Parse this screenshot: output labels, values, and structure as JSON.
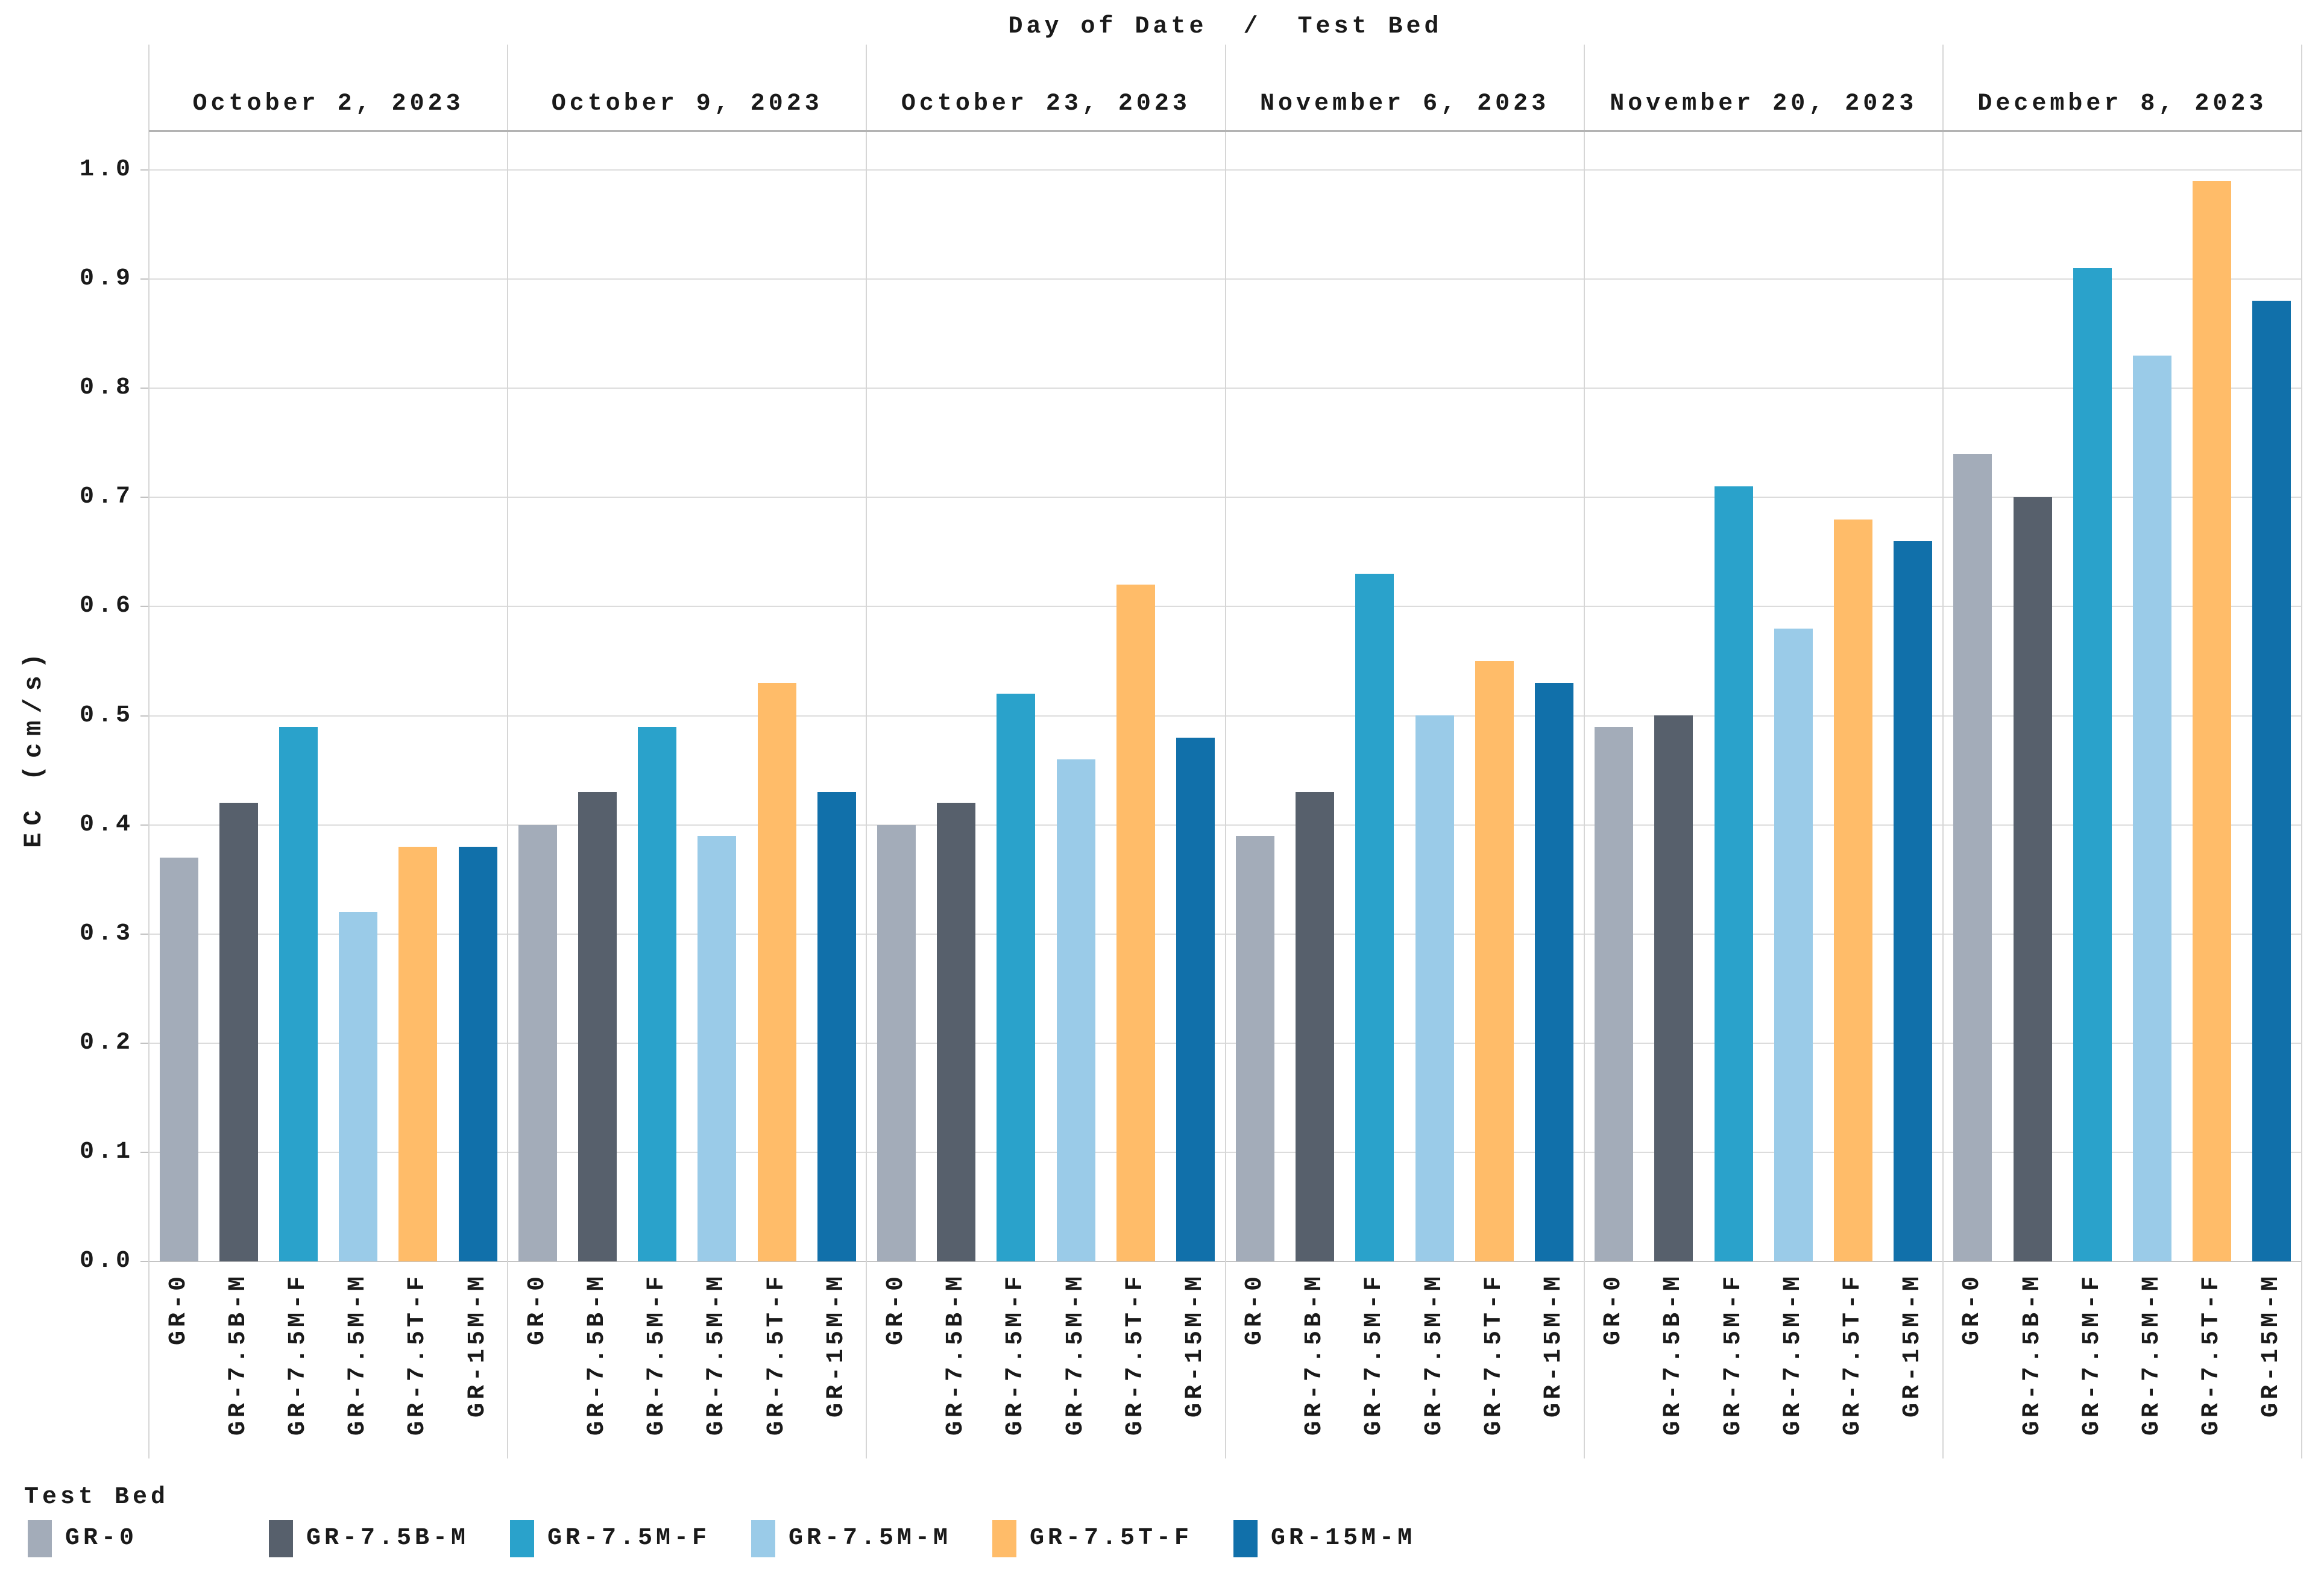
{
  "chart_data": {
    "type": "bar",
    "title": "Day of Date  /  Test Bed",
    "ylabel": "EC (cm/s)",
    "xlabel": "",
    "ylim": [
      0.0,
      1.0
    ],
    "ytick_step": 0.1,
    "ytick_labels": [
      "0.0",
      "0.1",
      "0.2",
      "0.3",
      "0.4",
      "0.5",
      "0.6",
      "0.7",
      "0.8",
      "0.9",
      "1.0"
    ],
    "grid": "horizontal",
    "legend": {
      "title": "Test Bed",
      "position": "bottom"
    },
    "categories": [
      "October 2, 2023",
      "October 9, 2023",
      "October 23, 2023",
      "November 6, 2023",
      "November 20, 2023",
      "December 8, 2023"
    ],
    "series": [
      {
        "name": "GR-0",
        "color": "#a3acb9",
        "values": [
          0.37,
          0.4,
          0.4,
          0.39,
          0.49,
          0.74
        ]
      },
      {
        "name": "GR-7.5B-M",
        "color": "#57606c",
        "values": [
          0.42,
          0.43,
          0.42,
          0.43,
          0.5,
          0.7
        ]
      },
      {
        "name": "GR-7.5M-F",
        "color": "#2aa2cb",
        "values": [
          0.49,
          0.49,
          0.52,
          0.63,
          0.71,
          0.91
        ]
      },
      {
        "name": "GR-7.5M-M",
        "color": "#9acbe8",
        "values": [
          0.32,
          0.39,
          0.46,
          0.5,
          0.58,
          0.83
        ]
      },
      {
        "name": "GR-7.5T-F",
        "color": "#ffbc69",
        "values": [
          0.38,
          0.53,
          0.62,
          0.55,
          0.68,
          0.99
        ]
      },
      {
        "name": "GR-15M-M",
        "color": "#1170aa",
        "values": [
          0.38,
          0.43,
          0.48,
          0.53,
          0.66,
          0.88
        ]
      }
    ]
  }
}
